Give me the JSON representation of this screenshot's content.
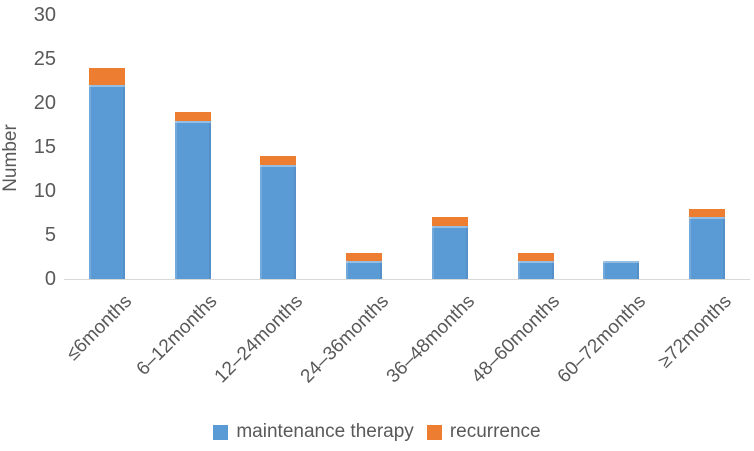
{
  "chart_data": {
    "type": "bar",
    "stacked": true,
    "title": "",
    "xlabel": "",
    "ylabel": "Number",
    "ylim": [
      0,
      30
    ],
    "yticks": [
      0,
      5,
      10,
      15,
      20,
      25,
      30
    ],
    "grid": false,
    "legend_position": "bottom",
    "categories": [
      "≤6months",
      "6–12months",
      "12–24months",
      "24–36months",
      "36–48months",
      "48–60months",
      "60–72months",
      "≥72months"
    ],
    "series": [
      {
        "name": "maintenance therapy",
        "color": "#5B9BD5",
        "values": [
          22,
          18,
          13,
          2,
          6,
          2,
          2,
          7
        ]
      },
      {
        "name": "recurrence",
        "color": "#ED7D31",
        "values": [
          2,
          1,
          1,
          1,
          1,
          1,
          0,
          1
        ]
      }
    ],
    "totals": [
      24,
      19,
      14,
      3,
      7,
      3,
      2,
      8
    ],
    "colors": {
      "axis_line": "#d8d8d8",
      "text": "#595959",
      "background": "#ffffff"
    }
  }
}
